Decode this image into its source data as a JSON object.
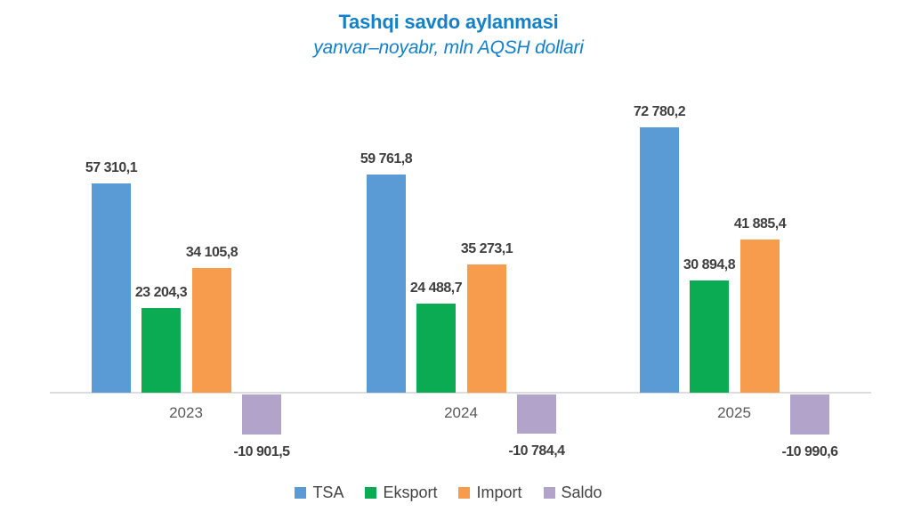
{
  "title": "Tashqi savdo aylanmasi",
  "subtitle": "yanvar–noyabr, mln AQSH dollari",
  "title_color": "#1380C8",
  "chart_data": {
    "type": "bar",
    "categories": [
      "2023",
      "2024",
      "2025"
    ],
    "series": [
      {
        "name": "TSA",
        "color": "#5B9BD5",
        "values": [
          57310.1,
          59761.8,
          72780.2
        ],
        "labels": [
          "57 310,1",
          "59 761,8",
          "72 780,2"
        ]
      },
      {
        "name": "Eksport",
        "color": "#0BAB53",
        "values": [
          23204.3,
          24488.7,
          30894.8
        ],
        "labels": [
          "23 204,3",
          "24 488,7",
          "30 894,8"
        ]
      },
      {
        "name": "Import",
        "color": "#F79B4D",
        "values": [
          34105.8,
          35273.1,
          41885.4
        ],
        "labels": [
          "34 105,8",
          "35 273,1",
          "41 885,4"
        ]
      },
      {
        "name": "Saldo",
        "color": "#B1A3C9",
        "values": [
          -10901.5,
          -10784.4,
          -10990.6
        ],
        "labels": [
          "-10 901,5",
          "-10 784,4",
          "-10 990,6"
        ]
      }
    ],
    "legend": [
      "TSA",
      "Eksport",
      "Import",
      "Saldo"
    ],
    "legend_position": "bottom",
    "grid": false,
    "baseline_value": 0,
    "axis_line_color": "#DCDCDC",
    "value_label_color": "#3F3F3F",
    "category_label_color": "#595959",
    "legend_label_color": "#444444"
  }
}
